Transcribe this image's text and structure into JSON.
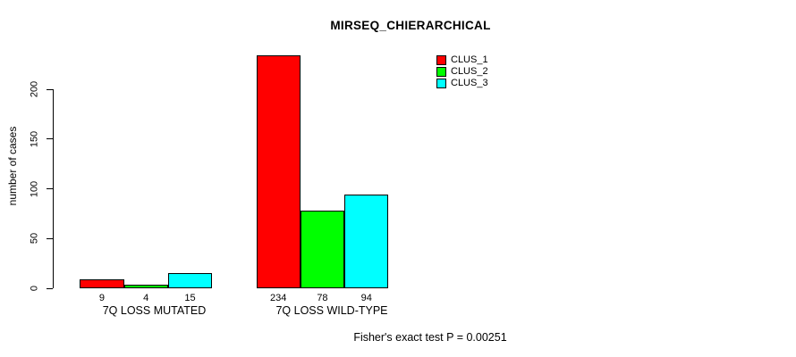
{
  "chart_data": {
    "type": "bar",
    "title": "MIRSEQ_CHIERARCHICAL",
    "ylabel": "number of cases",
    "xlabel": "",
    "footer": "Fisher's exact test P = 0.00251",
    "categories": [
      "7Q LOSS MUTATED",
      "7Q LOSS WILD-TYPE"
    ],
    "series": [
      {
        "name": "CLUS_1",
        "color": "#FF0000",
        "values": [
          9,
          234
        ]
      },
      {
        "name": "CLUS_2",
        "color": "#00FF00",
        "values": [
          4,
          78
        ]
      },
      {
        "name": "CLUS_3",
        "color": "#00FFFF",
        "values": [
          15,
          94
        ]
      }
    ],
    "bar_value_labels": [
      [
        9,
        4,
        15
      ],
      [
        234,
        78,
        94
      ]
    ],
    "yticks": [
      0,
      50,
      100,
      150,
      200
    ],
    "ylim": [
      0,
      240
    ],
    "grid": false,
    "legend_position": "top-right",
    "axis_color": "#000000",
    "background_color": "#FFFFFF"
  }
}
